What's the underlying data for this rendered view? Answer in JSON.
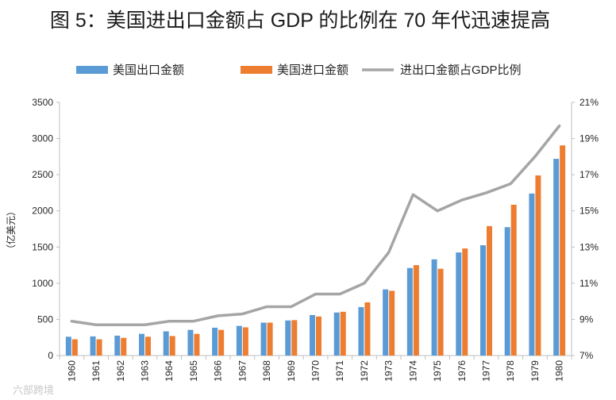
{
  "chart_data": {
    "type": "bar",
    "title": "图 5：美国进出口金额占 GDP 的比例在 70 年代迅速提高",
    "ylabel": "（亿美元）",
    "categories": [
      "1960",
      "1961",
      "1962",
      "1963",
      "1964",
      "1965",
      "1966",
      "1967",
      "1968",
      "1969",
      "1970",
      "1971",
      "1972",
      "1973",
      "1974",
      "1975",
      "1976",
      "1977",
      "1978",
      "1979",
      "1980"
    ],
    "series": [
      {
        "name": "美国出口金额",
        "color": "#5b9bd5",
        "axis": "left",
        "values": [
          260,
          265,
          275,
          300,
          335,
          355,
          385,
          410,
          455,
          485,
          560,
          595,
          670,
          915,
          1210,
          1330,
          1425,
          1525,
          1775,
          2240,
          2720
        ]
      },
      {
        "name": "美国进口金额",
        "color": "#ed7d31",
        "axis": "left",
        "values": [
          225,
          225,
          245,
          260,
          270,
          300,
          355,
          390,
          455,
          490,
          540,
          605,
          735,
          895,
          1250,
          1200,
          1480,
          1790,
          2085,
          2490,
          2905
        ]
      },
      {
        "name": "进出口金额占GDP比例",
        "color": "#a5a5a5",
        "axis": "right",
        "type": "line",
        "values": [
          8.9,
          8.7,
          8.7,
          8.7,
          8.9,
          8.9,
          9.2,
          9.3,
          9.7,
          9.7,
          10.4,
          10.4,
          11.0,
          12.7,
          15.9,
          15.0,
          15.6,
          16.0,
          16.5,
          18.0,
          19.7
        ]
      }
    ],
    "ylim": [
      0,
      3500
    ],
    "yticks": [
      "0",
      "500",
      "1000",
      "1500",
      "2000",
      "2500",
      "3000",
      "3500"
    ],
    "y2lim": [
      7,
      21
    ],
    "y2ticks": [
      "7%",
      "9%",
      "11%",
      "13%",
      "15%",
      "17%",
      "19%",
      "21%"
    ],
    "legend": "top"
  },
  "watermark": "六部跨境"
}
